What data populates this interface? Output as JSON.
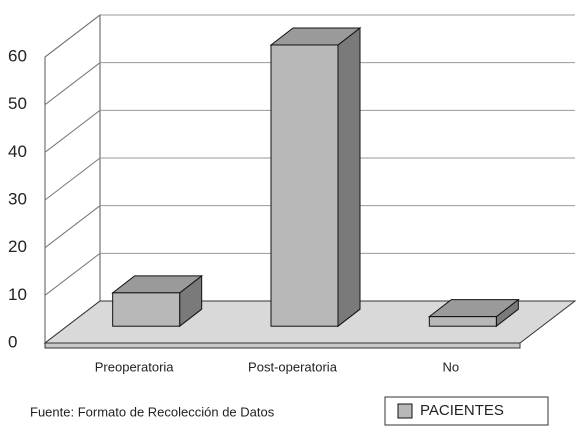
{
  "chart_data": {
    "type": "bar3d",
    "categories": [
      "Preoperatoria",
      "Post-operatoria",
      "No"
    ],
    "series": [
      {
        "name": "PACIENTES",
        "color": "#b8b8b8",
        "values": [
          7,
          59,
          2
        ]
      }
    ],
    "ylim": [
      0,
      60
    ],
    "yticks": [
      0,
      10,
      20,
      30,
      40,
      50,
      60
    ],
    "grid": true,
    "legend": "bottom-right",
    "annotation": "Fuente: Formato de Recolección de Datos"
  }
}
